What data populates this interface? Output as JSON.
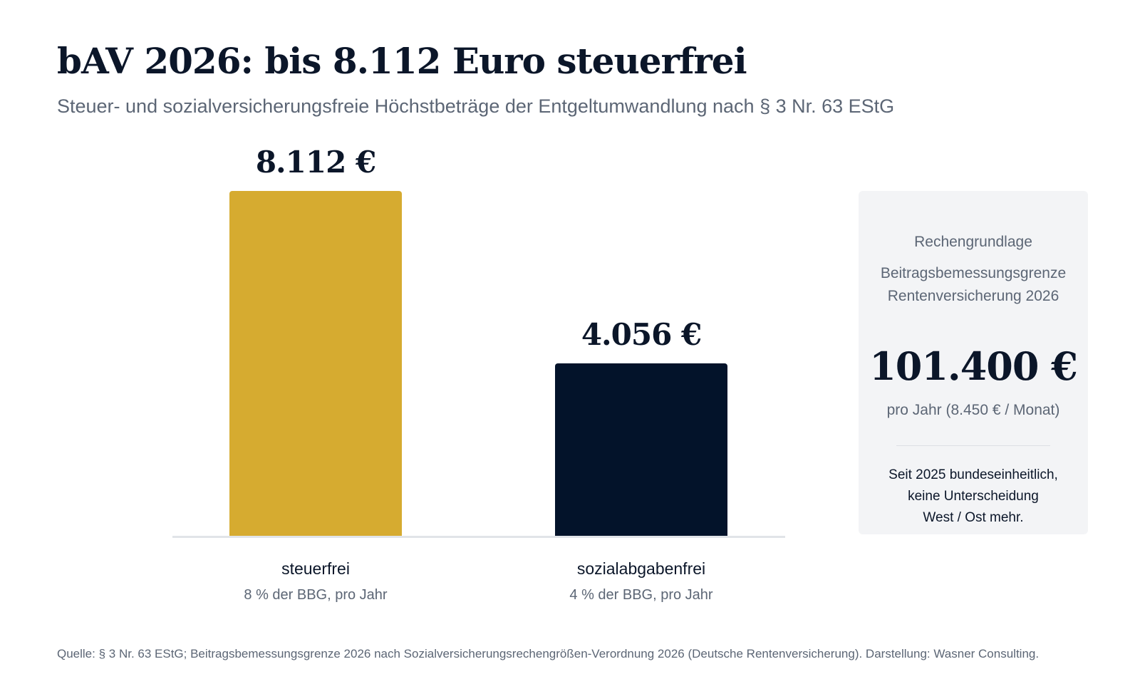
{
  "header": {
    "title": "bAV 2026: bis 8.112 Euro steuerfrei",
    "subtitle": "Steuer- und sozialversicherungsfreie Höchstbeträge der Entgeltumwandlung nach § 3 Nr. 63 EStG"
  },
  "chart_data": {
    "type": "bar",
    "categories": [
      "steuerfrei",
      "sozialabgabenfrei"
    ],
    "category_sublabels": [
      "8 % der BBG, pro Jahr",
      "4 % der BBG, pro Jahr"
    ],
    "values": [
      8112,
      4056
    ],
    "value_labels": [
      "8.112 €",
      "4.056 €"
    ],
    "colors": [
      "#d6ab30",
      "#03132a"
    ],
    "title": "bAV 2026: bis 8.112 Euro steuerfrei",
    "xlabel": "",
    "ylabel": "",
    "ylim": [
      0,
      8112
    ],
    "grid": false,
    "legend": "none"
  },
  "info_box": {
    "heading": "Rechengrundlage",
    "label_line1": "Beitragsbemessungsgrenze",
    "label_line2": "Rentenversicherung 2026",
    "value": "101.400 €",
    "sub": "pro Jahr (8.450 € / Monat)",
    "note_line1": "Seit 2025 bundeseinheitlich,",
    "note_line2": "keine Unterscheidung",
    "note_line3": "West / Ost mehr."
  },
  "footer": {
    "source": "Quelle: § 3 Nr. 63 EStG; Beitragsbemessungsgrenze 2026 nach Sozialversicherungsrechengrößen-Verordnung 2026 (Deutsche Rentenversicherung). Darstellung: Wasner Consulting."
  }
}
